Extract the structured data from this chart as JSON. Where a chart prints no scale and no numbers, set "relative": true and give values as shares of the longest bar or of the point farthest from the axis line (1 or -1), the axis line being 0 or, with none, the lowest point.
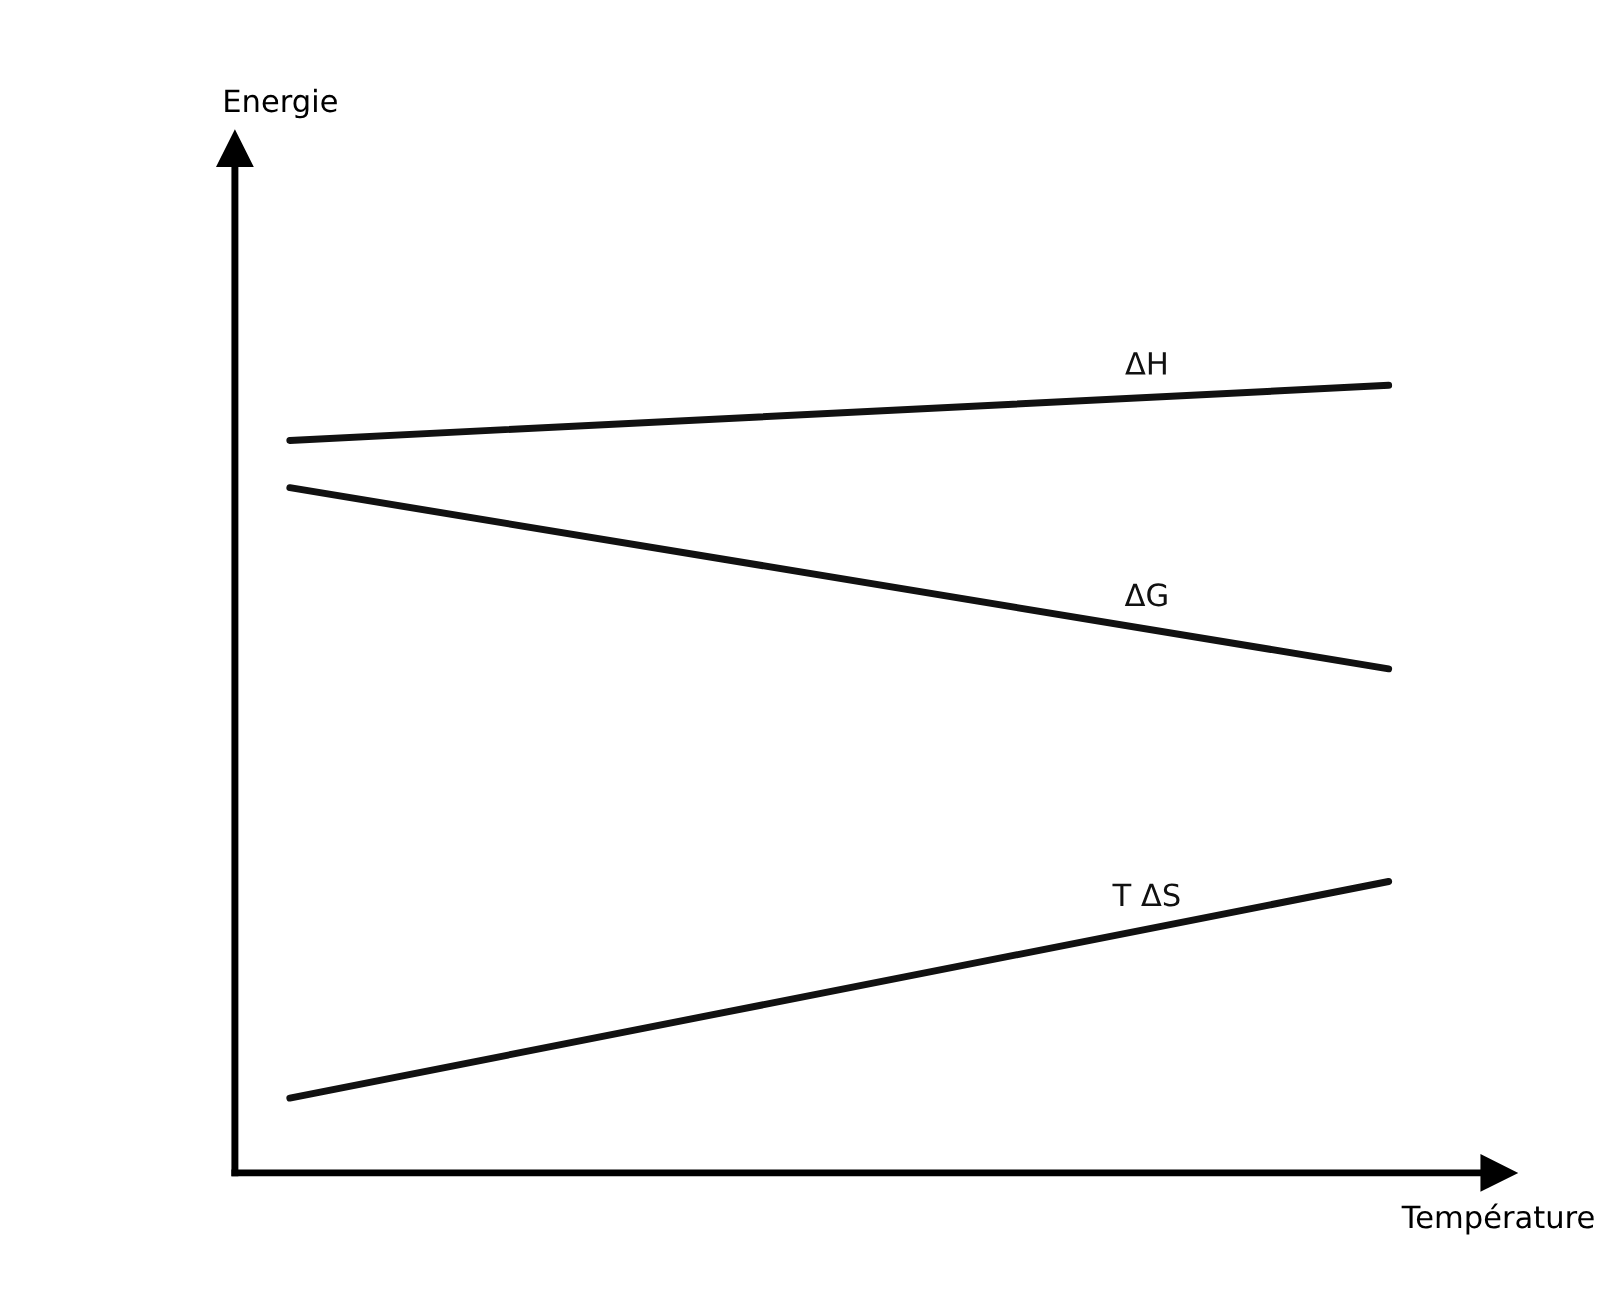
{
  "chart_data": {
    "type": "line",
    "relative": true,
    "xlabel": "Température",
    "annotations": [
      "Energie"
    ],
    "categories": [
      null,
      null
    ],
    "series": [
      {
        "name": "ΔH",
        "color": "#111111",
        "values": [
          0.93,
          1.0
        ]
      },
      {
        "name": "ΔG",
        "color": "#111111",
        "values": [
          0.87,
          0.64
        ]
      },
      {
        "name": "T ΔS",
        "color": "#111111",
        "values": [
          0.095,
          0.37
        ]
      }
    ],
    "grid": false,
    "legend": false,
    "marker": "none",
    "line_style": "solid"
  }
}
